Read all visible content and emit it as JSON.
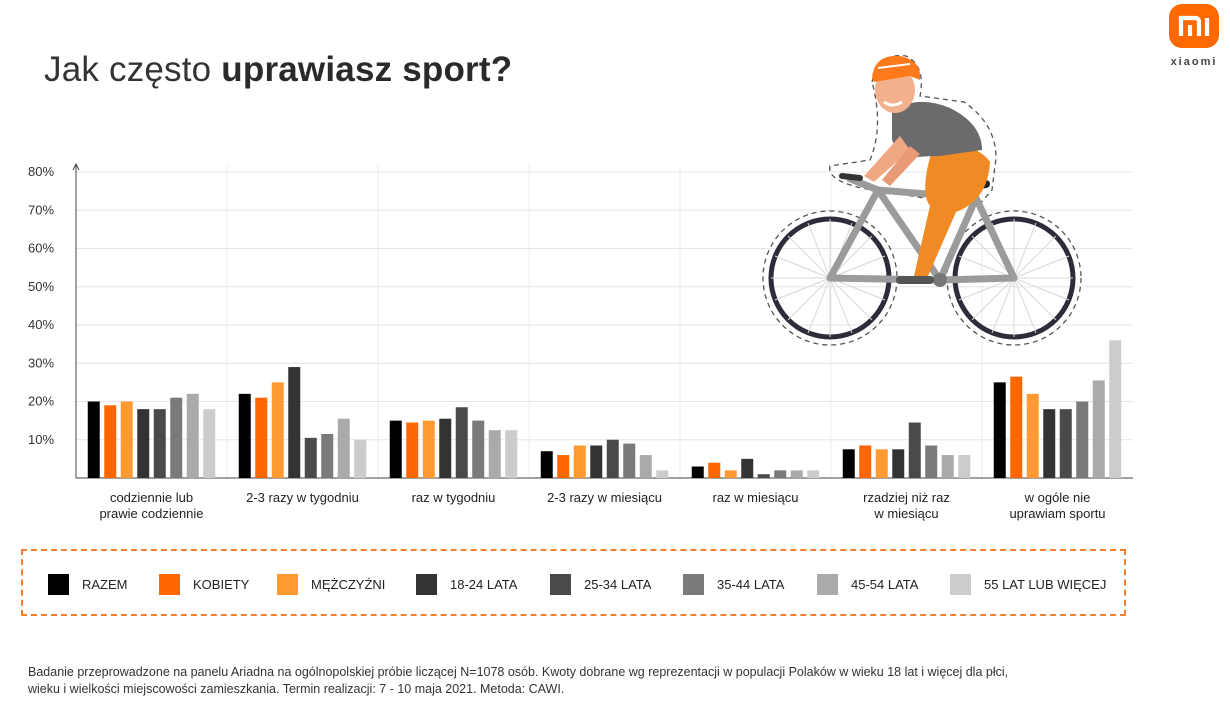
{
  "header": {
    "title_regular": "Jak często ",
    "title_bold": "uprawiasz sport?"
  },
  "brand": {
    "name": "xiaomi",
    "logo_mark": "mi",
    "color": "#ff6900"
  },
  "chart_data": {
    "type": "bar",
    "title": "Jak często uprawiasz sport?",
    "xlabel": "",
    "ylabel": "",
    "ylim": [
      0,
      80
    ],
    "yticks": [
      "10%",
      "20%",
      "30%",
      "40%",
      "50%",
      "60%",
      "70%",
      "80%"
    ],
    "grid": true,
    "legend_position": "bottom",
    "categories": [
      [
        "codziennie lub",
        "prawie codziennie"
      ],
      [
        "2-3 razy w tygodniu"
      ],
      [
        "raz w tygodniu"
      ],
      [
        "2-3 razy w miesiącu"
      ],
      [
        "raz w miesiącu"
      ],
      [
        "rzadziej niż raz",
        "w miesiącu"
      ],
      [
        "w ogóle nie",
        "uprawiam sportu"
      ]
    ],
    "series": [
      {
        "name": "RAZEM",
        "color": "#000000",
        "values": [
          20,
          22,
          15,
          7,
          3,
          7.5,
          25
        ]
      },
      {
        "name": "KOBIETY",
        "color": "#ff6600",
        "values": [
          19,
          21,
          14.5,
          6,
          4,
          8.5,
          26.5
        ]
      },
      {
        "name": "MĘŻCZYŹNI",
        "color": "#ff9a33",
        "values": [
          20,
          25,
          15,
          8.5,
          2,
          7.5,
          22
        ]
      },
      {
        "name": "18-24 LATA",
        "color": "#333333",
        "values": [
          18,
          29,
          15.5,
          8.5,
          5,
          7.5,
          18
        ]
      },
      {
        "name": "25-34 LATA",
        "color": "#4a4a4a",
        "values": [
          18,
          10.5,
          18.5,
          10,
          1,
          14.5,
          18
        ]
      },
      {
        "name": "35-44 LATA",
        "color": "#7a7a7a",
        "values": [
          21,
          11.5,
          15,
          9,
          2,
          8.5,
          20
        ]
      },
      {
        "name": "45-54 LATA",
        "color": "#aaaaaa",
        "values": [
          22,
          15.5,
          12.5,
          6,
          2,
          6,
          25.5
        ]
      },
      {
        "name": "55 LAT LUB WIĘCEJ",
        "color": "#cccccc",
        "values": [
          18,
          10,
          12.5,
          2,
          2,
          6,
          36
        ]
      }
    ]
  },
  "footnote": {
    "line1": "Badanie przeprowadzone na panelu Ariadna na ogólnopolskiej próbie liczącej N=1078 osób.  Kwoty dobrane wg reprezentacji w populacji Polaków w wieku 18 lat i więcej dla płci,",
    "line2": "wieku i wielkości miejscowości zamieszkania.  Termin realizacji: 7 - 10 maja 2021. Metoda: CAWI."
  },
  "illustration": {
    "icon": "cyclist-icon"
  }
}
